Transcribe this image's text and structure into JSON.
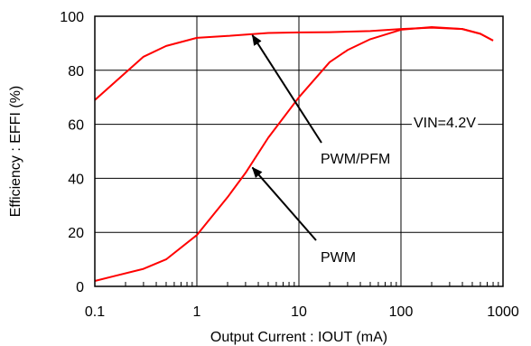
{
  "chart_data": {
    "type": "line",
    "title": "",
    "xlabel": "Output Current : IOUT (mA)",
    "ylabel": "Efficiency : EFFI (%)",
    "xscale": "log",
    "xlim": [
      0.1,
      1000
    ],
    "ylim": [
      0,
      100
    ],
    "x_ticks": [
      0.1,
      1,
      10,
      100,
      1000
    ],
    "x_tick_labels": [
      "0.1",
      "1",
      "10",
      "100",
      "1000"
    ],
    "y_ticks": [
      0,
      20,
      40,
      60,
      80,
      100
    ],
    "y_tick_labels": [
      "0",
      "20",
      "40",
      "60",
      "80",
      "100"
    ],
    "grid": true,
    "legend": "none",
    "line_color": "#ff0000",
    "series": [
      {
        "name": "PWM/PFM",
        "x": [
          0.1,
          0.3,
          0.5,
          1,
          2,
          5,
          10,
          20,
          50,
          100,
          200,
          400,
          600,
          800
        ],
        "y": [
          69,
          85,
          89,
          92,
          92.7,
          93.8,
          94,
          94.1,
          94.5,
          95.3,
          95.8,
          95.3,
          93.5,
          91
        ]
      },
      {
        "name": "PWM",
        "x": [
          0.1,
          0.3,
          0.5,
          1,
          2,
          3,
          5,
          10,
          20,
          30,
          50,
          100,
          200,
          400,
          600,
          800
        ],
        "y": [
          2,
          6.5,
          10,
          19,
          33,
          42,
          55,
          70,
          83,
          87.5,
          91.5,
          95,
          96,
          95.3,
          93.5,
          91
        ]
      }
    ],
    "annotations": [
      {
        "text": "VIN=4.2V",
        "kind": "label"
      },
      {
        "text": "PWM/PFM",
        "kind": "arrow",
        "tip_x": 3.5,
        "tip_y": 93
      },
      {
        "text": "PWM",
        "kind": "arrow",
        "tip_x": 3.5,
        "tip_y": 44
      }
    ]
  }
}
